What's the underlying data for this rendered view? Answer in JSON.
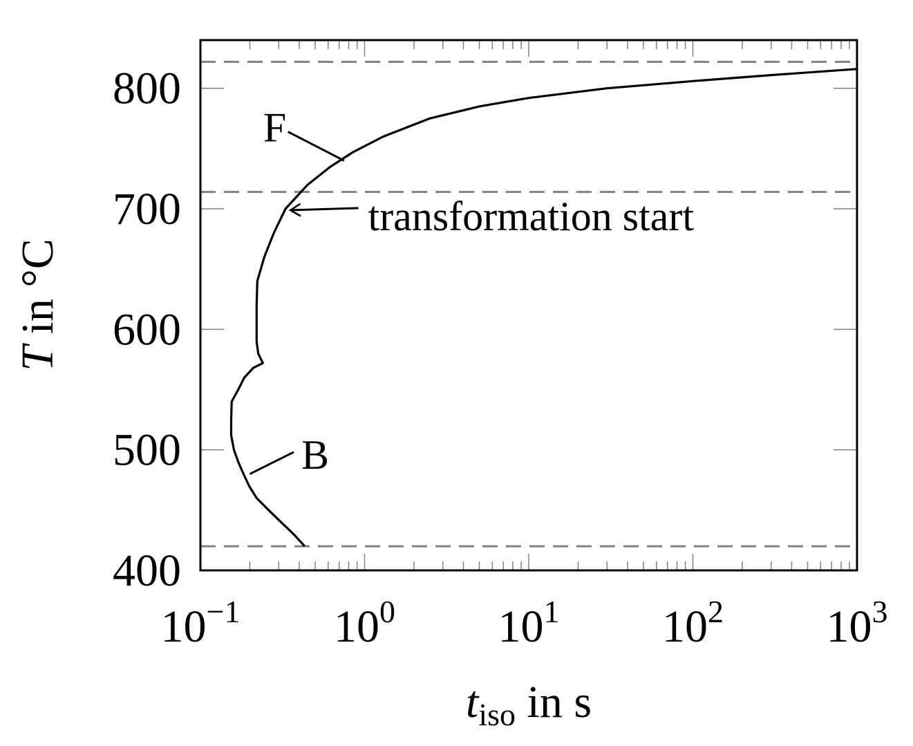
{
  "chart_data": {
    "type": "line",
    "title": "",
    "xlabel": {
      "var": "t",
      "sub": "iso",
      "rest": " in s"
    },
    "ylabel": {
      "var": "T",
      "rest": " in °C"
    },
    "xscale": "log",
    "xlim": [
      0.1,
      1000
    ],
    "ylim": [
      400,
      840
    ],
    "xticks": [
      {
        "value": 0.1,
        "base": "10",
        "exp": "−1"
      },
      {
        "value": 1,
        "base": "10",
        "exp": "0"
      },
      {
        "value": 10,
        "base": "10",
        "exp": "1"
      },
      {
        "value": 100,
        "base": "10",
        "exp": "2"
      },
      {
        "value": 1000,
        "base": "10",
        "exp": "3"
      }
    ],
    "yticks": [
      400,
      500,
      600,
      700,
      800
    ],
    "grid": false,
    "series": [
      {
        "name": "",
        "style": "solid",
        "color": "#000000",
        "points": [
          {
            "x": 0.432,
            "y": 420
          },
          {
            "x": 0.37,
            "y": 430
          },
          {
            "x": 0.31,
            "y": 440
          },
          {
            "x": 0.26,
            "y": 450
          },
          {
            "x": 0.22,
            "y": 460
          },
          {
            "x": 0.198,
            "y": 470
          },
          {
            "x": 0.183,
            "y": 480
          },
          {
            "x": 0.17,
            "y": 490
          },
          {
            "x": 0.16,
            "y": 500
          },
          {
            "x": 0.154,
            "y": 512
          },
          {
            "x": 0.154,
            "y": 525
          },
          {
            "x": 0.155,
            "y": 540
          },
          {
            "x": 0.17,
            "y": 550
          },
          {
            "x": 0.185,
            "y": 560
          },
          {
            "x": 0.21,
            "y": 568
          },
          {
            "x": 0.24,
            "y": 572
          },
          {
            "x": 0.225,
            "y": 580
          },
          {
            "x": 0.22,
            "y": 590
          },
          {
            "x": 0.22,
            "y": 600
          },
          {
            "x": 0.22,
            "y": 620
          },
          {
            "x": 0.222,
            "y": 640
          },
          {
            "x": 0.245,
            "y": 660
          },
          {
            "x": 0.28,
            "y": 680
          },
          {
            "x": 0.33,
            "y": 700
          },
          {
            "x": 0.45,
            "y": 720
          },
          {
            "x": 0.62,
            "y": 735
          },
          {
            "x": 0.85,
            "y": 747
          },
          {
            "x": 1.3,
            "y": 760
          },
          {
            "x": 2.5,
            "y": 775
          },
          {
            "x": 5,
            "y": 785
          },
          {
            "x": 10,
            "y": 792
          },
          {
            "x": 30,
            "y": 800
          },
          {
            "x": 100,
            "y": 806
          },
          {
            "x": 300,
            "y": 811
          },
          {
            "x": 1000,
            "y": 816
          }
        ]
      }
    ],
    "reference_lines": [
      {
        "y": 822,
        "style": "dashed",
        "color": "#808080"
      },
      {
        "y": 714,
        "style": "dashed",
        "color": "#808080"
      },
      {
        "y": 420,
        "style": "dashed",
        "color": "#808080"
      }
    ],
    "annotations": [
      {
        "text": "F",
        "text_x": 0.47,
        "text_y": 772,
        "target_x": 0.75,
        "target_y": 740,
        "arrow": false
      },
      {
        "text": "B",
        "text_x": 0.42,
        "text_y": 497,
        "target_x": 0.2,
        "target_y": 480,
        "arrow": false
      },
      {
        "text": "transformation start",
        "text_x": 1.05,
        "text_y": 688,
        "target_x": 0.34,
        "target_y": 700,
        "arrow": true
      }
    ]
  }
}
